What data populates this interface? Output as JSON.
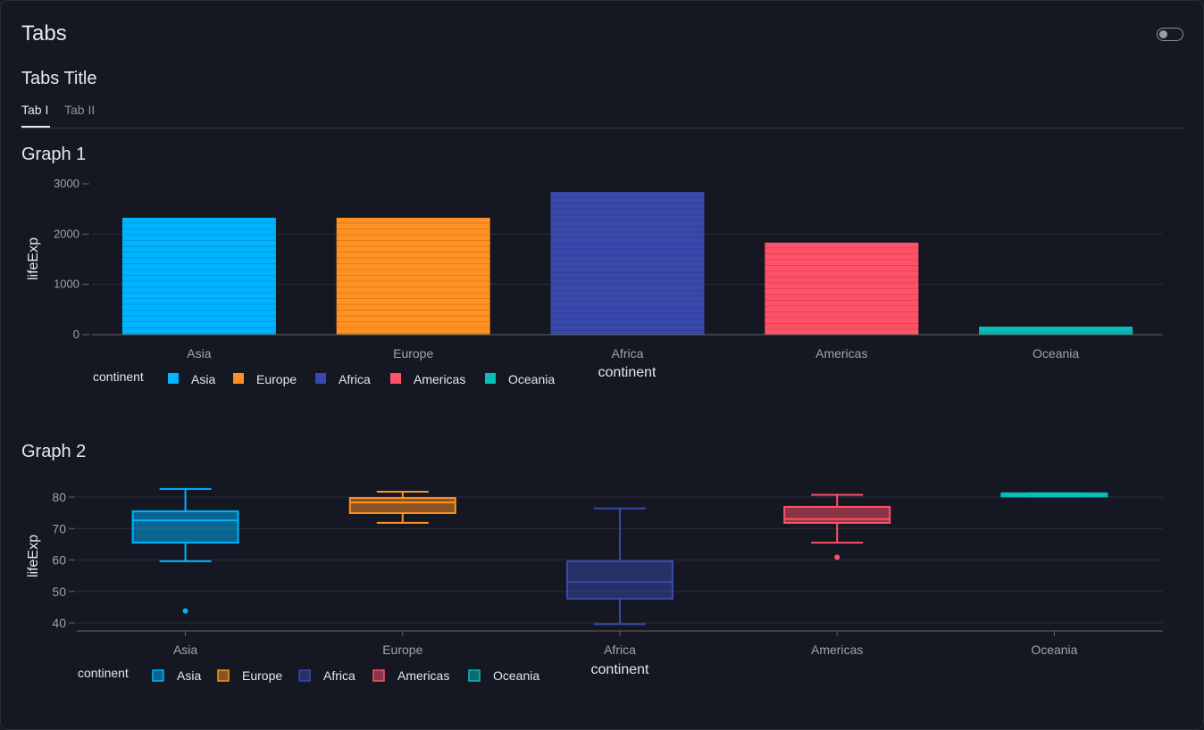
{
  "header": {
    "title": "Tabs",
    "theme_toggle": "off"
  },
  "tabs_title": "Tabs Title",
  "tabs": [
    {
      "label": "Tab I",
      "active": true
    },
    {
      "label": "Tab II",
      "active": false
    }
  ],
  "graphs": [
    {
      "title": "Graph 1"
    },
    {
      "title": "Graph 2"
    }
  ],
  "colors": {
    "Asia": "#00b4ff",
    "Europe": "#ff9222",
    "Africa": "#3949ab",
    "Americas": "#ff5267",
    "Oceania": "#08bdba"
  },
  "chart_data": [
    {
      "type": "bar",
      "categories": [
        "Asia",
        "Europe",
        "Africa",
        "Americas",
        "Oceania"
      ],
      "values": [
        2325,
        2325,
        2840,
        1830,
        160
      ],
      "xlabel": "continent",
      "ylabel": "lifeExp",
      "ylim": [
        0,
        3000
      ],
      "yticks": [
        0,
        1000,
        2000,
        3000
      ],
      "yticklabels": [
        "0",
        "1000",
        "2000",
        "3000"
      ],
      "legend_title": "continent",
      "legend": [
        "Asia",
        "Europe",
        "Africa",
        "Americas",
        "Oceania"
      ],
      "legend_placement": "bottom-left",
      "grid": true
    },
    {
      "type": "box",
      "categories": [
        "Asia",
        "Europe",
        "Africa",
        "Americas",
        "Oceania"
      ],
      "boxes": [
        {
          "min": 59.6,
          "q1": 65.5,
          "median": 72.6,
          "q3": 75.5,
          "max": 82.6,
          "outliers": [
            43.8
          ]
        },
        {
          "min": 71.8,
          "q1": 74.9,
          "median": 78.3,
          "q3": 79.7,
          "max": 81.7,
          "outliers": []
        },
        {
          "min": 39.6,
          "q1": 47.7,
          "median": 53.0,
          "q3": 59.6,
          "max": 76.4,
          "outliers": []
        },
        {
          "min": 65.5,
          "q1": 71.8,
          "median": 73.0,
          "q3": 76.9,
          "max": 80.7,
          "outliers": [
            60.9
          ]
        },
        {
          "min": 80.2,
          "q1": 80.2,
          "median": 80.7,
          "q3": 81.2,
          "max": 81.2,
          "outliers": []
        }
      ],
      "xlabel": "continent",
      "ylabel": "lifeExp",
      "ylim": [
        37.4,
        85
      ],
      "yticks": [
        40,
        50,
        60,
        70,
        80
      ],
      "yticklabels": [
        "40",
        "50",
        "60",
        "70",
        "80"
      ],
      "legend_title": "continent",
      "legend": [
        "Asia",
        "Europe",
        "Africa",
        "Americas",
        "Oceania"
      ],
      "legend_placement": "bottom-left",
      "grid": true
    }
  ]
}
